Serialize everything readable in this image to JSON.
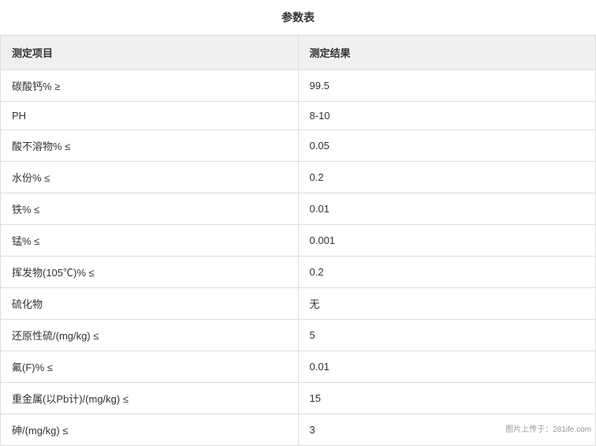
{
  "title": "参数表",
  "table": {
    "columns": [
      {
        "label": "测定项目",
        "width": "50%"
      },
      {
        "label": "测定结果",
        "width": "50%"
      }
    ],
    "rows": [
      {
        "item": "碳酸钙% ≥",
        "result": "99.5"
      },
      {
        "item": "PH",
        "result": "8-10"
      },
      {
        "item": "酸不溶物% ≤",
        "result": "0.05"
      },
      {
        "item": "水份% ≤",
        "result": "0.2"
      },
      {
        "item": "铁% ≤",
        "result": "0.01"
      },
      {
        "item": "锰% ≤",
        "result": "0.001"
      },
      {
        "item": "挥发物(105℃)% ≤",
        "result": "0.2"
      },
      {
        "item": "硫化物",
        "result": "无"
      },
      {
        "item": "还原性硫/(mg/kg) ≤",
        "result": "5"
      },
      {
        "item": "氟(F)% ≤",
        "result": "0.01"
      },
      {
        "item": "重金属(以Pb计)/(mg/kg) ≤",
        "result": "15"
      },
      {
        "item": "砷/(mg/kg) ≤",
        "result": "3"
      }
    ],
    "header_bg": "#f0f0f0",
    "border_color": "#dddddd",
    "text_color": "#333333",
    "font_size_header": 13,
    "font_size_cell": 13
  },
  "watermark": "图片上传于：281ife.com"
}
